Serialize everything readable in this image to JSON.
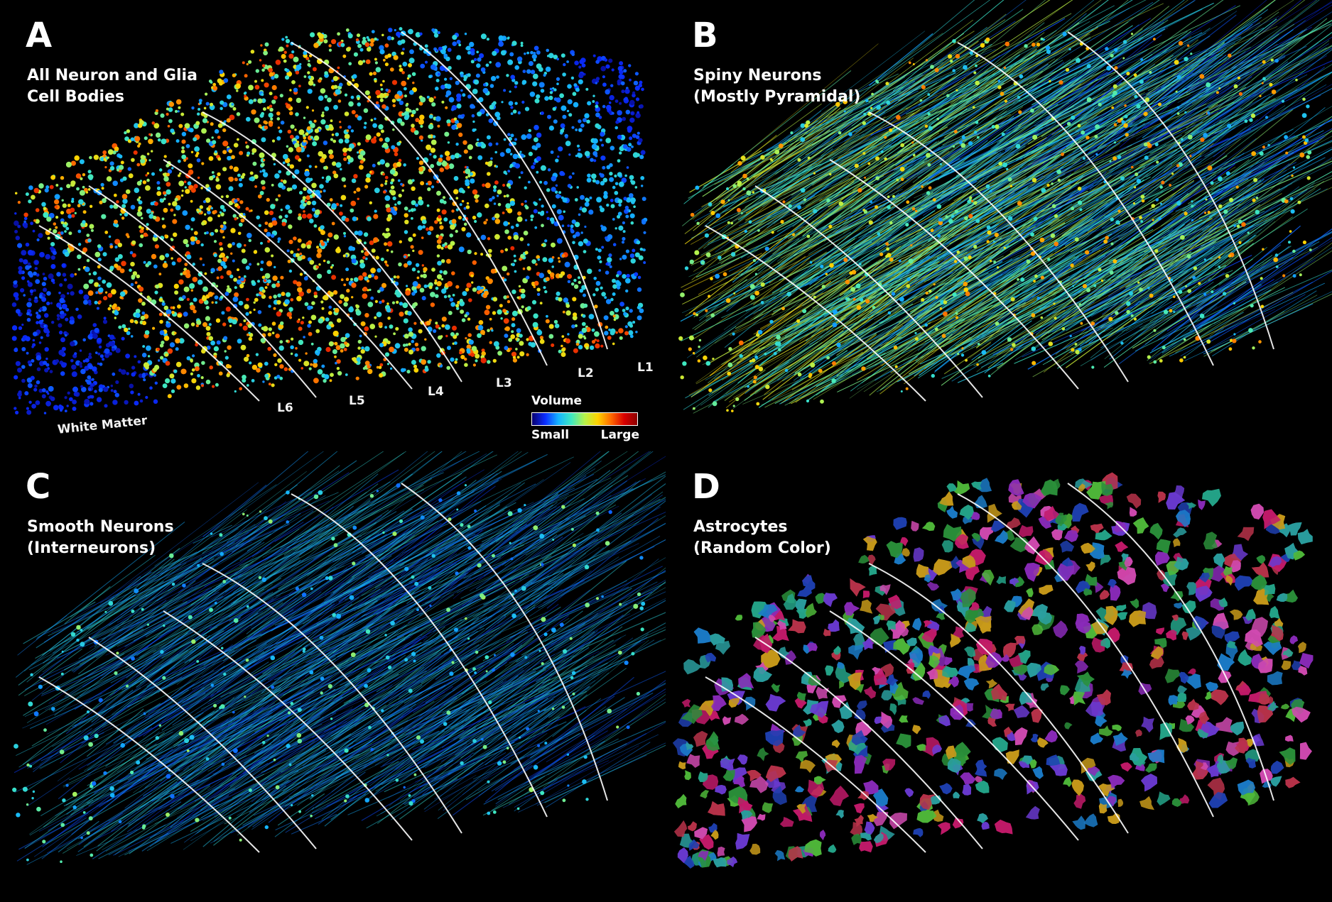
{
  "panels": [
    {
      "letter": "A",
      "caption_line1": "All Neuron and Glia",
      "caption_line2": "Cell Bodies",
      "style": "cellbodies"
    },
    {
      "letter": "B",
      "caption_line1": "Spiny Neurons",
      "caption_line2": "(Mostly Pyramidal)",
      "style": "spiny"
    },
    {
      "letter": "C",
      "caption_line1": "Smooth Neurons",
      "caption_line2": "(Interneurons)",
      "style": "smooth"
    },
    {
      "letter": "D",
      "caption_line1": "Astrocytes",
      "caption_line2": "(Random Color)",
      "style": "astro"
    }
  ],
  "layer_labels": {
    "wm": "White Matter",
    "l6": "L6",
    "l5": "L5",
    "l4": "L4",
    "l3": "L3",
    "l2": "L2",
    "l1": "L1"
  },
  "legend": {
    "title": "Volume",
    "min_label": "Small",
    "max_label": "Large"
  },
  "colors": {
    "background": "#000000",
    "boundary_line": "#ffffff",
    "volume_scale": [
      "#08006e",
      "#0a2cff",
      "#14b4ff",
      "#3fe8c0",
      "#b6f24a",
      "#ffd200",
      "#ff6a00",
      "#d80000"
    ]
  }
}
